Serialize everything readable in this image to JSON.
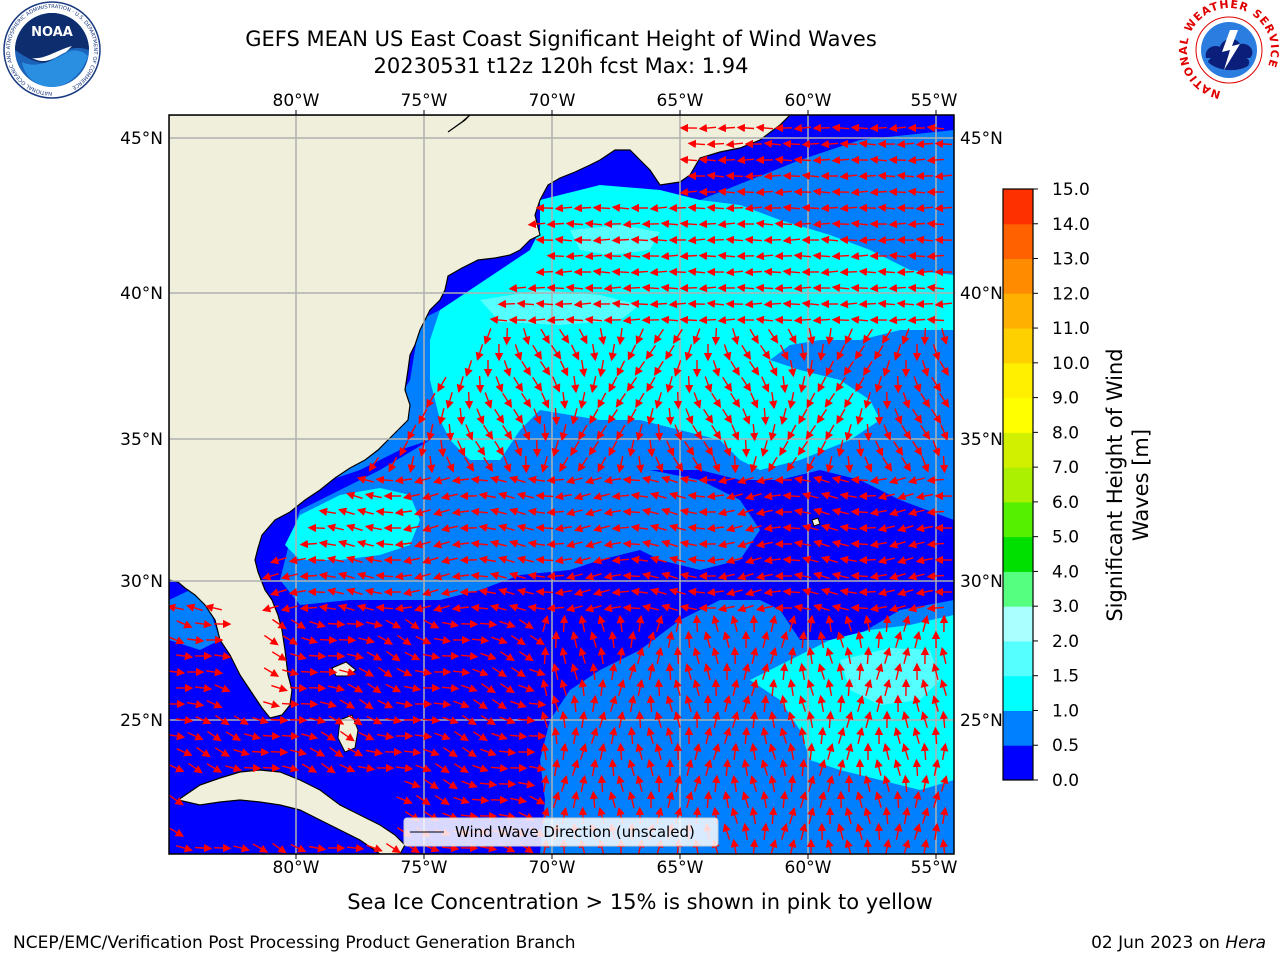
{
  "header": {
    "title_line1": "GEFS MEAN US East Coast Significant Height of Wind Waves",
    "title_line2": "20230531 t12z 120h fcst   Max: 1.94"
  },
  "logos": {
    "left": {
      "name": "NOAA",
      "ring_text": "NATIONAL OCEANIC AND ATMOSPHERIC ADMINISTRATION · U.S. DEPARTMENT OF COMMERCE"
    },
    "right": {
      "name": "NATIONAL WEATHER SERVICE"
    }
  },
  "map": {
    "top_lon_labels": [
      "80°W",
      "75°W",
      "70°W",
      "65°W",
      "60°W",
      "55°W"
    ],
    "bottom_lon_labels": [
      "80°W",
      "75°W",
      "70°W",
      "65°W",
      "60°W",
      "55°W"
    ],
    "left_lat_labels": [
      "45°N",
      "40°N",
      "35°N",
      "30°N",
      "25°N"
    ],
    "right_lat_labels": [
      "45°N",
      "40°N",
      "35°N",
      "30°N",
      "25°N"
    ],
    "legend_label": "Wind Wave Direction (unscaled)",
    "colors": {
      "land": "#efefdc",
      "grid": "#b0b0b0",
      "arrow": "#ff0000",
      "coast": "#000000"
    }
  },
  "colorbar": {
    "title": "Significant Height of Wind Waves [m]",
    "tick_labels": [
      "0.0",
      "0.5",
      "1.0",
      "1.5",
      "2.0",
      "3.0",
      "4.0",
      "5.0",
      "6.0",
      "7.0",
      "8.0",
      "9.0",
      "10.0",
      "11.0",
      "12.0",
      "13.0",
      "14.0",
      "15.0"
    ],
    "colors": [
      "#0000ff",
      "#0080ff",
      "#00ffff",
      "#55ffff",
      "#aaffff",
      "#55ff80",
      "#00e000",
      "#55f000",
      "#aaf000",
      "#d0f000",
      "#ffff00",
      "#fff000",
      "#ffd000",
      "#ffb000",
      "#ff8c00",
      "#ff6000",
      "#ff3000",
      "#ff0000"
    ]
  },
  "footer": {
    "note": "Sea Ice Concentration > 15% is shown in pink to yellow",
    "credit": "NCEP/EMC/Verification Post Processing Product Generation Branch",
    "date": "02 Jun 2023 on",
    "machine": "Hera"
  }
}
